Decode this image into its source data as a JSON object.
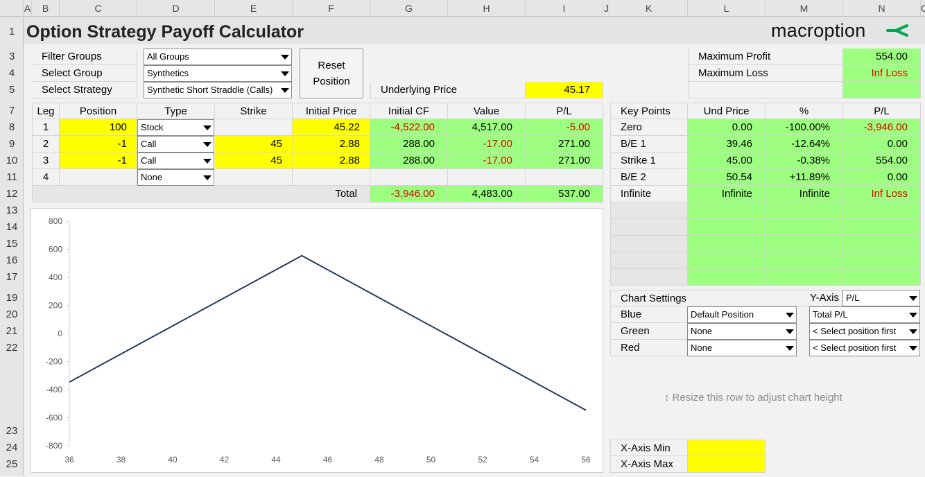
{
  "col_headers": [
    "A",
    "B",
    "C",
    "D",
    "E",
    "F",
    "G",
    "H",
    "I",
    "J",
    "K",
    "L",
    "M",
    "N",
    "O"
  ],
  "row_numbers": [
    "1",
    "3",
    "4",
    "5",
    "7",
    "8",
    "9",
    "10",
    "11",
    "12",
    "13",
    "14",
    "15",
    "16",
    "17",
    "19",
    "20",
    "21",
    "22",
    "23",
    "24",
    "25"
  ],
  "title": "Option Strategy Payoff Calculator",
  "logo": "macroption",
  "colors": {
    "accent": "#1f5f8b",
    "logo_check": "#00a651",
    "green_cell": "#9dff7f",
    "yellow_cell": "#ffff00",
    "loss_red": "#e00000",
    "chart_line": "#243a5e"
  },
  "filters": {
    "filter_groups_label": "Filter Groups",
    "filter_groups_value": "All Groups",
    "select_group_label": "Select Group",
    "select_group_value": "Synthetics",
    "select_strategy_label": "Select Strategy",
    "select_strategy_value": "Synthetic Short Straddle (Calls)"
  },
  "reset_button": {
    "line1": "Reset",
    "line2": "Position"
  },
  "underlying": {
    "label": "Underlying Price",
    "value": "45.17"
  },
  "summary": {
    "max_profit_label": "Maximum Profit",
    "max_profit_value": "554.00",
    "max_loss_label": "Maximum Loss",
    "max_loss_value": "Inf Loss"
  },
  "legs_table": {
    "headers": [
      "Leg",
      "Position",
      "Type",
      "Strike",
      "Initial Price",
      "Initial CF",
      "Value",
      "P/L"
    ],
    "rows": [
      {
        "leg": "1",
        "position": "100",
        "type": "Stock",
        "strike": "",
        "price": "45.22",
        "cf": "-4,522.00",
        "value": "4,517.00",
        "pl": "-5.00"
      },
      {
        "leg": "2",
        "position": "-1",
        "type": "Call",
        "strike": "45",
        "price": "2.88",
        "cf": "288.00",
        "value": "-17.00",
        "pl": "271.00"
      },
      {
        "leg": "3",
        "position": "-1",
        "type": "Call",
        "strike": "45",
        "price": "2.88",
        "cf": "288.00",
        "value": "-17.00",
        "pl": "271.00"
      },
      {
        "leg": "4",
        "position": "",
        "type": "None",
        "strike": "",
        "price": "",
        "cf": "",
        "value": "",
        "pl": ""
      }
    ],
    "total_label": "Total",
    "total_cf": "-3,946.00",
    "total_value": "4,483.00",
    "total_pl": "537.00"
  },
  "key_points": {
    "headers": [
      "Key Points",
      "Und Price",
      "%",
      "P/L"
    ],
    "rows": [
      {
        "name": "Zero",
        "price": "0.00",
        "pct": "-100.00%",
        "pl": "-3,946.00"
      },
      {
        "name": "B/E 1",
        "price": "39.46",
        "pct": "-12.64%",
        "pl": "0.00"
      },
      {
        "name": "Strike 1",
        "price": "45.00",
        "pct": "-0.38%",
        "pl": "554.00"
      },
      {
        "name": "B/E 2",
        "price": "50.54",
        "pct": "+11.89%",
        "pl": "0.00"
      },
      {
        "name": "Infinite",
        "price": "Infinite",
        "pct": "Infinite",
        "pl": "Inf Loss"
      }
    ]
  },
  "chart_settings": {
    "label": "Chart Settings",
    "yaxis_label": "Y-Axis",
    "yaxis_value": "P/L",
    "blue_label": "Blue",
    "blue_position": "Default Position",
    "blue_series": "Total P/L",
    "green_label": "Green",
    "green_position": "None",
    "green_series": "< Select position first",
    "red_label": "Red",
    "red_position": "None",
    "red_series": "< Select position first"
  },
  "resize_hint": "Resize this row to adjust chart height",
  "xaxis": {
    "min_label": "X-Axis Min",
    "max_label": "X-Axis Max",
    "min_value": "",
    "max_value": ""
  },
  "chart_data": {
    "type": "line",
    "x": [
      36,
      39.46,
      45,
      50.54,
      56
    ],
    "series": [
      {
        "values": [
          -346,
          0,
          554,
          0,
          -546
        ]
      }
    ],
    "xlim": [
      36,
      56
    ],
    "ylim": [
      -800,
      800
    ],
    "xticks": [
      "36",
      "38",
      "40",
      "42",
      "44",
      "46",
      "48",
      "50",
      "52",
      "54",
      "56"
    ],
    "yticks": [
      "800",
      "600",
      "400",
      "200",
      "0",
      "-200",
      "-400",
      "-600",
      "-800"
    ],
    "grid": false
  }
}
